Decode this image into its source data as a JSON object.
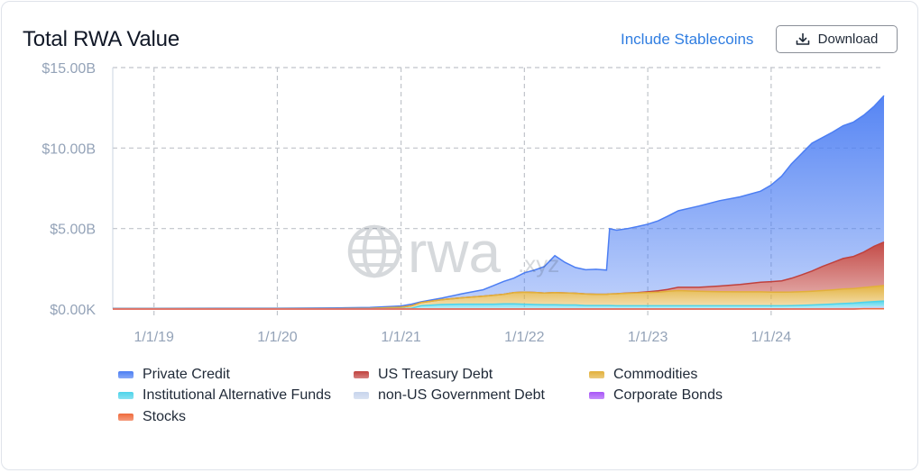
{
  "header": {
    "title": "Total RWA Value",
    "stablecoins_label": "Include Stablecoins",
    "download_label": "Download"
  },
  "watermark": {
    "text_main": "rwa",
    "text_suffix": ".xyz"
  },
  "colors": {
    "grid": "#c0c4ca",
    "tick_text": "#94a3b8",
    "axis_line": "#cbd5e1"
  },
  "chart_data": {
    "type": "area",
    "stacked": true,
    "title": "Total RWA Value",
    "xlabel": "",
    "ylabel": "",
    "x_ticks": [
      "1/1/19",
      "1/1/20",
      "1/1/21",
      "1/1/22",
      "1/1/23",
      "1/1/24"
    ],
    "x_range": [
      "2018-09-01",
      "2024-11-30"
    ],
    "y_ticks": [
      "$0.00K",
      "$5.00B",
      "$10.00B",
      "$15.00B"
    ],
    "ylim": [
      0,
      15
    ],
    "y_unit": "$B",
    "grid": true,
    "legend_position": "bottom",
    "x": [
      "2018-09-01",
      "2019-01-01",
      "2019-07-01",
      "2020-01-01",
      "2020-07-01",
      "2020-10-01",
      "2021-01-01",
      "2021-02-01",
      "2021-03-01",
      "2021-05-01",
      "2021-07-01",
      "2021-09-01",
      "2021-10-01",
      "2021-11-01",
      "2021-12-01",
      "2022-01-01",
      "2022-02-01",
      "2022-03-01",
      "2022-04-01",
      "2022-05-01",
      "2022-06-01",
      "2022-07-01",
      "2022-08-01",
      "2022-09-01",
      "2022-09-10",
      "2022-10-01",
      "2022-11-01",
      "2022-12-01",
      "2023-01-01",
      "2023-02-01",
      "2023-03-01",
      "2023-04-01",
      "2023-06-01",
      "2023-08-01",
      "2023-10-01",
      "2023-12-01",
      "2024-01-01",
      "2024-02-01",
      "2024-03-01",
      "2024-04-01",
      "2024-05-01",
      "2024-06-01",
      "2024-07-01",
      "2024-08-01",
      "2024-09-01",
      "2024-10-01",
      "2024-11-01",
      "2024-11-30"
    ],
    "series": [
      {
        "name": "Stocks",
        "color": "#ef6a3c",
        "values": [
          0,
          0,
          0,
          0,
          0,
          0,
          0,
          0,
          0,
          0,
          0,
          0,
          0,
          0,
          0,
          0,
          0,
          0,
          0,
          0,
          0,
          0,
          0,
          0,
          0,
          0,
          0,
          0,
          0,
          0,
          0,
          0,
          0,
          0,
          0,
          0,
          0,
          0,
          0,
          0,
          0,
          0,
          0,
          0,
          0,
          0.01,
          0.01,
          0.01
        ]
      },
      {
        "name": "Corporate Bonds",
        "color": "#a855f7",
        "values": [
          0,
          0,
          0,
          0,
          0,
          0,
          0,
          0,
          0,
          0,
          0,
          0,
          0,
          0,
          0,
          0,
          0,
          0,
          0,
          0,
          0,
          0,
          0,
          0,
          0,
          0,
          0,
          0,
          0,
          0,
          0,
          0,
          0,
          0,
          0,
          0,
          0,
          0,
          0,
          0,
          0,
          0,
          0,
          0,
          0,
          0.01,
          0.01,
          0.01
        ]
      },
      {
        "name": "non-US Government Debt",
        "color": "#c7d4ec",
        "values": [
          0,
          0,
          0,
          0,
          0,
          0,
          0,
          0,
          0,
          0,
          0,
          0,
          0,
          0,
          0,
          0,
          0,
          0,
          0,
          0,
          0,
          0,
          0,
          0,
          0,
          0,
          0,
          0,
          0,
          0,
          0,
          0,
          0,
          0,
          0,
          0,
          0,
          0,
          0.01,
          0.02,
          0.03,
          0.04,
          0.05,
          0.06,
          0.07,
          0.08,
          0.09,
          0.1
        ]
      },
      {
        "name": "Institutional Alternative Funds",
        "color": "#4dd3ea",
        "values": [
          0.02,
          0.02,
          0.02,
          0.02,
          0.02,
          0.02,
          0.03,
          0.05,
          0.2,
          0.28,
          0.3,
          0.3,
          0.3,
          0.32,
          0.32,
          0.3,
          0.28,
          0.27,
          0.27,
          0.25,
          0.25,
          0.22,
          0.22,
          0.22,
          0.22,
          0.2,
          0.2,
          0.2,
          0.2,
          0.2,
          0.2,
          0.2,
          0.2,
          0.2,
          0.2,
          0.2,
          0.2,
          0.2,
          0.2,
          0.21,
          0.22,
          0.24,
          0.26,
          0.28,
          0.3,
          0.32,
          0.35,
          0.38
        ]
      },
      {
        "name": "Commodities",
        "color": "#e2b03a",
        "values": [
          0,
          0,
          0,
          0,
          0,
          0.02,
          0.08,
          0.15,
          0.2,
          0.3,
          0.4,
          0.5,
          0.55,
          0.6,
          0.7,
          0.75,
          0.75,
          0.72,
          0.75,
          0.75,
          0.73,
          0.72,
          0.7,
          0.7,
          0.72,
          0.75,
          0.78,
          0.8,
          0.82,
          0.85,
          0.9,
          0.95,
          0.9,
          0.88,
          0.87,
          0.87,
          0.85,
          0.85,
          0.85,
          0.85,
          0.86,
          0.87,
          0.88,
          0.9,
          0.9,
          0.92,
          0.94,
          0.96
        ]
      },
      {
        "name": "US Treasury Debt",
        "color": "#c0413d",
        "values": [
          0,
          0,
          0,
          0,
          0,
          0,
          0,
          0,
          0,
          0,
          0,
          0,
          0,
          0,
          0,
          0,
          0,
          0,
          0,
          0,
          0,
          0,
          0,
          0,
          0,
          0,
          0.01,
          0.02,
          0.05,
          0.08,
          0.12,
          0.2,
          0.25,
          0.35,
          0.45,
          0.6,
          0.65,
          0.7,
          0.85,
          1.05,
          1.25,
          1.5,
          1.7,
          1.9,
          2.0,
          2.2,
          2.5,
          2.7
        ]
      },
      {
        "name": "Private Credit",
        "color": "#4c7ef3",
        "values": [
          0.02,
          0.02,
          0.03,
          0.03,
          0.05,
          0.06,
          0.08,
          0.1,
          0.05,
          0.1,
          0.25,
          0.4,
          0.6,
          0.8,
          0.9,
          1.2,
          1.4,
          1.65,
          2.3,
          1.9,
          1.6,
          1.5,
          1.55,
          1.5,
          4.05,
          3.95,
          4.0,
          4.1,
          4.2,
          4.35,
          4.55,
          4.75,
          5.05,
          5.3,
          5.45,
          5.65,
          6.0,
          6.5,
          7.1,
          7.55,
          7.95,
          8.0,
          8.1,
          8.25,
          8.35,
          8.5,
          8.7,
          9.1
        ]
      }
    ]
  },
  "legend": {
    "items": [
      {
        "label": "Private Credit",
        "color": "#4c7ef3"
      },
      {
        "label": "US Treasury Debt",
        "color": "#c0413d"
      },
      {
        "label": "Commodities",
        "color": "#e2b03a"
      },
      {
        "label": "Institutional Alternative Funds",
        "color": "#4dd3ea"
      },
      {
        "label": "non-US Government Debt",
        "color": "#c7d4ec"
      },
      {
        "label": "Corporate Bonds",
        "color": "#a855f7"
      },
      {
        "label": "Stocks",
        "color": "#ef6a3c"
      }
    ]
  }
}
